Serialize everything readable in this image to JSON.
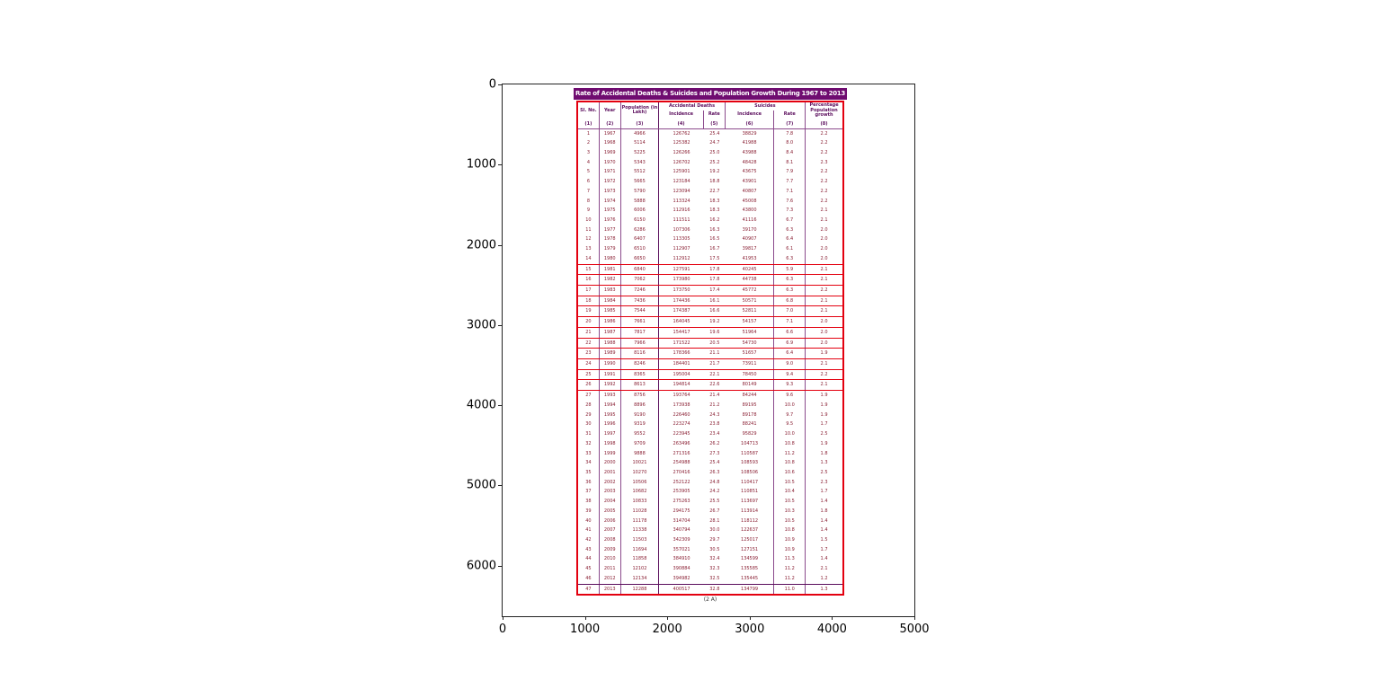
{
  "figure": {
    "x_ticks": [
      "0",
      "1000",
      "2000",
      "3000",
      "4000",
      "5000"
    ],
    "y_ticks": [
      "0",
      "1000",
      "2000",
      "3000",
      "4000",
      "5000",
      "6000"
    ]
  },
  "table": {
    "title": "Rate of Accidental Deaths & Suicides and Population Growth During 1967 to 2013",
    "caption": "(2 A)",
    "header": {
      "sl_no": "Sl. No.",
      "year": "Year",
      "population": "Population (in Lakh)",
      "accidental_group": "Accidental Deaths",
      "suicides_group": "Suicides",
      "incidence_a": "Incidence",
      "rate_a": "Rate",
      "incidence_s": "Incidence",
      "rate_s": "Rate",
      "pct_growth": "Percentage Population growth",
      "col_numbers": [
        "(1)",
        "(2)",
        "(3)",
        "(4)",
        "(5)",
        "(6)",
        "(7)",
        "(8)"
      ]
    }
  },
  "chart_data": {
    "type": "table",
    "title": "Rate of Accidental Deaths & Suicides and Population Growth During 1967 to 2013",
    "axes": {
      "xlabel": "",
      "ylabel": "",
      "xlim": [
        0,
        5000
      ],
      "ylim": [
        6600,
        0
      ],
      "grid": false
    },
    "columns": [
      "Sl. No.",
      "Year",
      "Population (in Lakh)",
      "Accidental Deaths Incidence",
      "Accidental Deaths Rate",
      "Suicides Incidence",
      "Suicides Rate",
      "Percentage Population growth"
    ],
    "rows": [
      [
        "1",
        "1967",
        "4966",
        "126762",
        "25.4",
        "38829",
        "7.8",
        "2.2"
      ],
      [
        "2",
        "1968",
        "5114",
        "125382",
        "24.7",
        "41988",
        "8.0",
        "2.2"
      ],
      [
        "3",
        "1969",
        "5225",
        "126266",
        "25.0",
        "43988",
        "8.4",
        "2.2"
      ],
      [
        "4",
        "1970",
        "5343",
        "126702",
        "25.2",
        "48428",
        "8.1",
        "2.3"
      ],
      [
        "5",
        "1971",
        "5512",
        "125901",
        "19.2",
        "43675",
        "7.9",
        "2.2"
      ],
      [
        "6",
        "1972",
        "5665",
        "123184",
        "18.8",
        "43901",
        "7.7",
        "2.2"
      ],
      [
        "7",
        "1973",
        "5790",
        "123094",
        "22.7",
        "40807",
        "7.1",
        "2.2"
      ],
      [
        "8",
        "1974",
        "5888",
        "113324",
        "18.3",
        "45008",
        "7.6",
        "2.2"
      ],
      [
        "9",
        "1975",
        "6006",
        "112916",
        "18.3",
        "43800",
        "7.3",
        "2.1"
      ],
      [
        "10",
        "1976",
        "6150",
        "111511",
        "16.2",
        "41116",
        "6.7",
        "2.1"
      ],
      [
        "11",
        "1977",
        "6286",
        "107306",
        "16.3",
        "39170",
        "6.3",
        "2.0"
      ],
      [
        "12",
        "1978",
        "6407",
        "113305",
        "16.5",
        "40907",
        "6.4",
        "2.0"
      ],
      [
        "13",
        "1979",
        "6510",
        "112907",
        "16.7",
        "39817",
        "6.1",
        "2.0"
      ],
      [
        "14",
        "1980",
        "6650",
        "112912",
        "17.5",
        "41953",
        "6.3",
        "2.0"
      ],
      [
        "15",
        "1981",
        "6840",
        "127591",
        "17.8",
        "40245",
        "5.9",
        "2.1"
      ],
      [
        "16",
        "1982",
        "7062",
        "173980",
        "17.8",
        "44738",
        "6.3",
        "2.1"
      ],
      [
        "17",
        "1983",
        "7246",
        "173750",
        "17.4",
        "45772",
        "6.3",
        "2.2"
      ],
      [
        "18",
        "1984",
        "7436",
        "174436",
        "16.1",
        "50571",
        "6.8",
        "2.1"
      ],
      [
        "19",
        "1985",
        "7544",
        "174387",
        "16.6",
        "52811",
        "7.0",
        "2.1"
      ],
      [
        "20",
        "1986",
        "7661",
        "164045",
        "19.2",
        "54157",
        "7.1",
        "2.0"
      ],
      [
        "21",
        "1987",
        "7817",
        "154417",
        "19.6",
        "51964",
        "6.6",
        "2.0"
      ],
      [
        "22",
        "1988",
        "7966",
        "171522",
        "20.5",
        "54730",
        "6.9",
        "2.0"
      ],
      [
        "23",
        "1989",
        "8116",
        "178366",
        "21.1",
        "51657",
        "6.4",
        "1.9"
      ],
      [
        "24",
        "1990",
        "8246",
        "184401",
        "21.7",
        "73911",
        "9.0",
        "2.1"
      ],
      [
        "25",
        "1991",
        "8365",
        "195004",
        "22.1",
        "78450",
        "9.4",
        "2.2"
      ],
      [
        "26",
        "1992",
        "8613",
        "194814",
        "22.6",
        "80149",
        "9.3",
        "2.1"
      ],
      [
        "27",
        "1993",
        "8756",
        "193764",
        "21.4",
        "84244",
        "9.6",
        "1.9"
      ],
      [
        "28",
        "1994",
        "8896",
        "173938",
        "21.2",
        "89195",
        "10.0",
        "1.9"
      ],
      [
        "29",
        "1995",
        "9190",
        "226460",
        "24.3",
        "89178",
        "9.7",
        "1.9"
      ],
      [
        "30",
        "1996",
        "9319",
        "223274",
        "23.8",
        "88241",
        "9.5",
        "1.7"
      ],
      [
        "31",
        "1997",
        "9552",
        "223945",
        "23.4",
        "95829",
        "10.0",
        "2.5"
      ],
      [
        "32",
        "1998",
        "9709",
        "263496",
        "26.2",
        "104713",
        "10.8",
        "1.9"
      ],
      [
        "33",
        "1999",
        "9888",
        "271316",
        "27.3",
        "110587",
        "11.2",
        "1.8"
      ],
      [
        "34",
        "2000",
        "10021",
        "254988",
        "25.4",
        "108593",
        "10.8",
        "1.3"
      ],
      [
        "35",
        "2001",
        "10270",
        "270416",
        "26.3",
        "108506",
        "10.6",
        "2.5"
      ],
      [
        "36",
        "2002",
        "10506",
        "252122",
        "24.8",
        "110417",
        "10.5",
        "2.3"
      ],
      [
        "37",
        "2003",
        "10682",
        "253905",
        "24.2",
        "110851",
        "10.4",
        "1.7"
      ],
      [
        "38",
        "2004",
        "10833",
        "275263",
        "25.5",
        "113697",
        "10.5",
        "1.4"
      ],
      [
        "39",
        "2005",
        "11028",
        "294175",
        "26.7",
        "113914",
        "10.3",
        "1.8"
      ],
      [
        "40",
        "2006",
        "11178",
        "314704",
        "28.1",
        "118112",
        "10.5",
        "1.4"
      ],
      [
        "41",
        "2007",
        "11338",
        "340794",
        "30.0",
        "122637",
        "10.8",
        "1.4"
      ],
      [
        "42",
        "2008",
        "11503",
        "342309",
        "29.7",
        "125017",
        "10.9",
        "1.5"
      ],
      [
        "43",
        "2009",
        "11694",
        "357021",
        "30.5",
        "127151",
        "10.9",
        "1.7"
      ],
      [
        "44",
        "2010",
        "11858",
        "384910",
        "32.4",
        "134599",
        "11.3",
        "1.4"
      ],
      [
        "45",
        "2011",
        "12102",
        "390884",
        "32.3",
        "135585",
        "11.2",
        "2.1"
      ],
      [
        "46",
        "2012",
        "12134",
        "394982",
        "32.5",
        "135445",
        "11.2",
        "1.2"
      ],
      [
        "47",
        "2013",
        "12288",
        "400517",
        "32.8",
        "134799",
        "11.0",
        "1.3"
      ]
    ]
  }
}
